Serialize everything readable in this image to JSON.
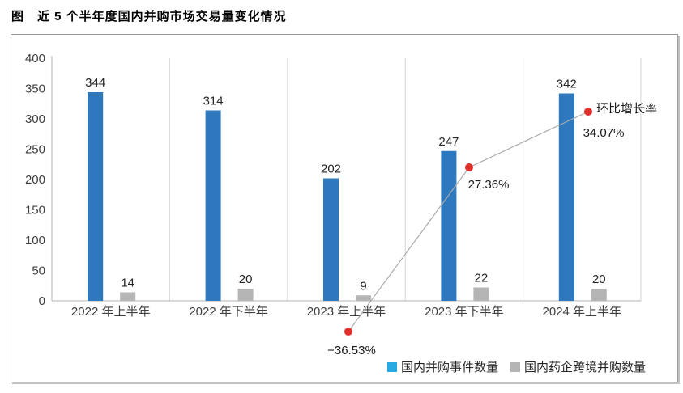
{
  "title": "图　近 5 个半年度国内并购市场交易量变化情况",
  "chart_data": {
    "type": "bar",
    "title": "近 5 个半年度国内并购市场交易量变化情况",
    "categories": [
      "2022 年上半年",
      "2022 年下半年",
      "2023 年上半年",
      "2023 年下半年",
      "2024 年上半年"
    ],
    "series": [
      {
        "name": "国内并购事件数量",
        "type": "bar",
        "color": "#2e78be",
        "values": [
          344,
          314,
          202,
          247,
          342
        ]
      },
      {
        "name": "国内药企跨境并购数量",
        "type": "bar",
        "color": "#b5b5b5",
        "values": [
          14,
          20,
          9,
          22,
          20
        ]
      },
      {
        "name": "环比增长率",
        "type": "line",
        "point_color": "#e2302c",
        "line_color": "#ababab",
        "values": [
          null,
          null,
          -36.53,
          27.36,
          34.07
        ],
        "labels": [
          "−36.53%",
          "27.36%",
          "34.07%"
        ]
      }
    ],
    "line_annotation": "环比增长率",
    "xlabel": "",
    "ylabel": "",
    "y_axis": {
      "min": 0,
      "max": 400,
      "step": 50,
      "ticks": [
        "0",
        "50",
        "100",
        "150",
        "200",
        "250",
        "300",
        "350",
        "400"
      ]
    },
    "grid": "vertical-category-separators",
    "legend_position": "bottom-right",
    "legend": [
      {
        "label": "国内并购事件数量",
        "color": "#29aae2"
      },
      {
        "label": "国内药企跨境并购数量",
        "color": "#b5b5b5"
      }
    ]
  },
  "colors": {
    "bar_blue": "#2e78be",
    "bar_gray": "#b5b5b5",
    "line_gray": "#ababab",
    "point_red": "#e2302c",
    "axis_line": "#b3b3b3",
    "separator": "#d6d6d6",
    "tick_text": "#404040",
    "label_text": "#262626",
    "annotation_text": "#1a1a1a"
  }
}
